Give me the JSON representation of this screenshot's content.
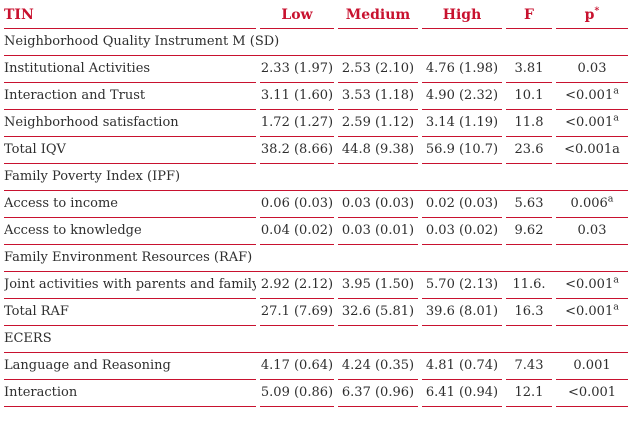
{
  "colors": {
    "accent": "#c8122f",
    "body_text": "#2e2e2e",
    "background": "#ffffff"
  },
  "table": {
    "columns": [
      {
        "key": "label",
        "label": "TIN",
        "sup": ""
      },
      {
        "key": "low",
        "label": "Low",
        "sup": ""
      },
      {
        "key": "medium",
        "label": "Medium",
        "sup": ""
      },
      {
        "key": "high",
        "label": "High",
        "sup": ""
      },
      {
        "key": "f",
        "label": "F",
        "sup": ""
      },
      {
        "key": "p",
        "label": "p",
        "sup": "*"
      }
    ],
    "rows": [
      {
        "type": "section",
        "label": "Neighborhood Quality Instrument M (SD)"
      },
      {
        "type": "data",
        "label": "Institutional Activities",
        "low": "2.33 (1.97)",
        "medium": "2.53 (2.10)",
        "high": "4.76 (1.98)",
        "f": "3.81",
        "p": "0.03",
        "p_sup": ""
      },
      {
        "type": "data",
        "label": "Interaction and Trust",
        "low": "3.11 (1.60)",
        "medium": "3.53 (1.18)",
        "high": "4.90 (2.32)",
        "f": "10.1",
        "p": "<0.001",
        "p_sup": "a"
      },
      {
        "type": "data",
        "label": "Neighborhood satisfaction",
        "low": "1.72 (1.27)",
        "medium": "2.59 (1.12)",
        "high": "3.14 (1.19)",
        "f": "11.8",
        "p": "<0.001",
        "p_sup": "a"
      },
      {
        "type": "data",
        "label": "Total IQV",
        "low": "38.2 (8.66)",
        "medium": "44.8 (9.38)",
        "high": "56.9 (10.7)",
        "f": "23.6",
        "p": "<0.001a",
        "p_sup": ""
      },
      {
        "type": "section",
        "label": "Family Poverty Index (IPF)"
      },
      {
        "type": "data",
        "label": "Access to income",
        "low": "0.06 (0.03)",
        "medium": "0.03 (0.03)",
        "high": "0.02 (0.03)",
        "f": "5.63",
        "p": "0.006",
        "p_sup": "a"
      },
      {
        "type": "data",
        "label": "Access to knowledge",
        "low": "0.04 (0.02)",
        "medium": "0.03 (0.01)",
        "high": "0.03 (0.02)",
        "f": "9.62",
        "p": "0.03",
        "p_sup": ""
      },
      {
        "type": "section",
        "label": "Family Environment Resources (RAF)"
      },
      {
        "type": "data",
        "label": "Joint activities with parents and family",
        "low": "2.92 (2.12)",
        "medium": "3.95 (1.50)",
        "high": "5.70 (2.13)",
        "f": "11.6.",
        "p": "<0.001",
        "p_sup": "a"
      },
      {
        "type": "data",
        "label": "Total RAF",
        "low": "27.1 (7.69)",
        "medium": "32.6 (5.81)",
        "high": "39.6 (8.01)",
        "f": "16.3",
        "p": "<0.001",
        "p_sup": "a"
      },
      {
        "type": "section",
        "label": "ECERS"
      },
      {
        "type": "data",
        "label": "Language and Reasoning",
        "low": "4.17 (0.64)",
        "medium": "4.24 (0.35)",
        "high": "4.81 (0.74)",
        "f": "7.43",
        "p": "0.001",
        "p_sup": ""
      },
      {
        "type": "data",
        "label": "Interaction",
        "low": "5.09 (0.86)",
        "medium": "6.37 (0.96)",
        "high": "6.41 (0.94)",
        "f": "12.1",
        "p": "<0.001",
        "p_sup": ""
      }
    ]
  }
}
